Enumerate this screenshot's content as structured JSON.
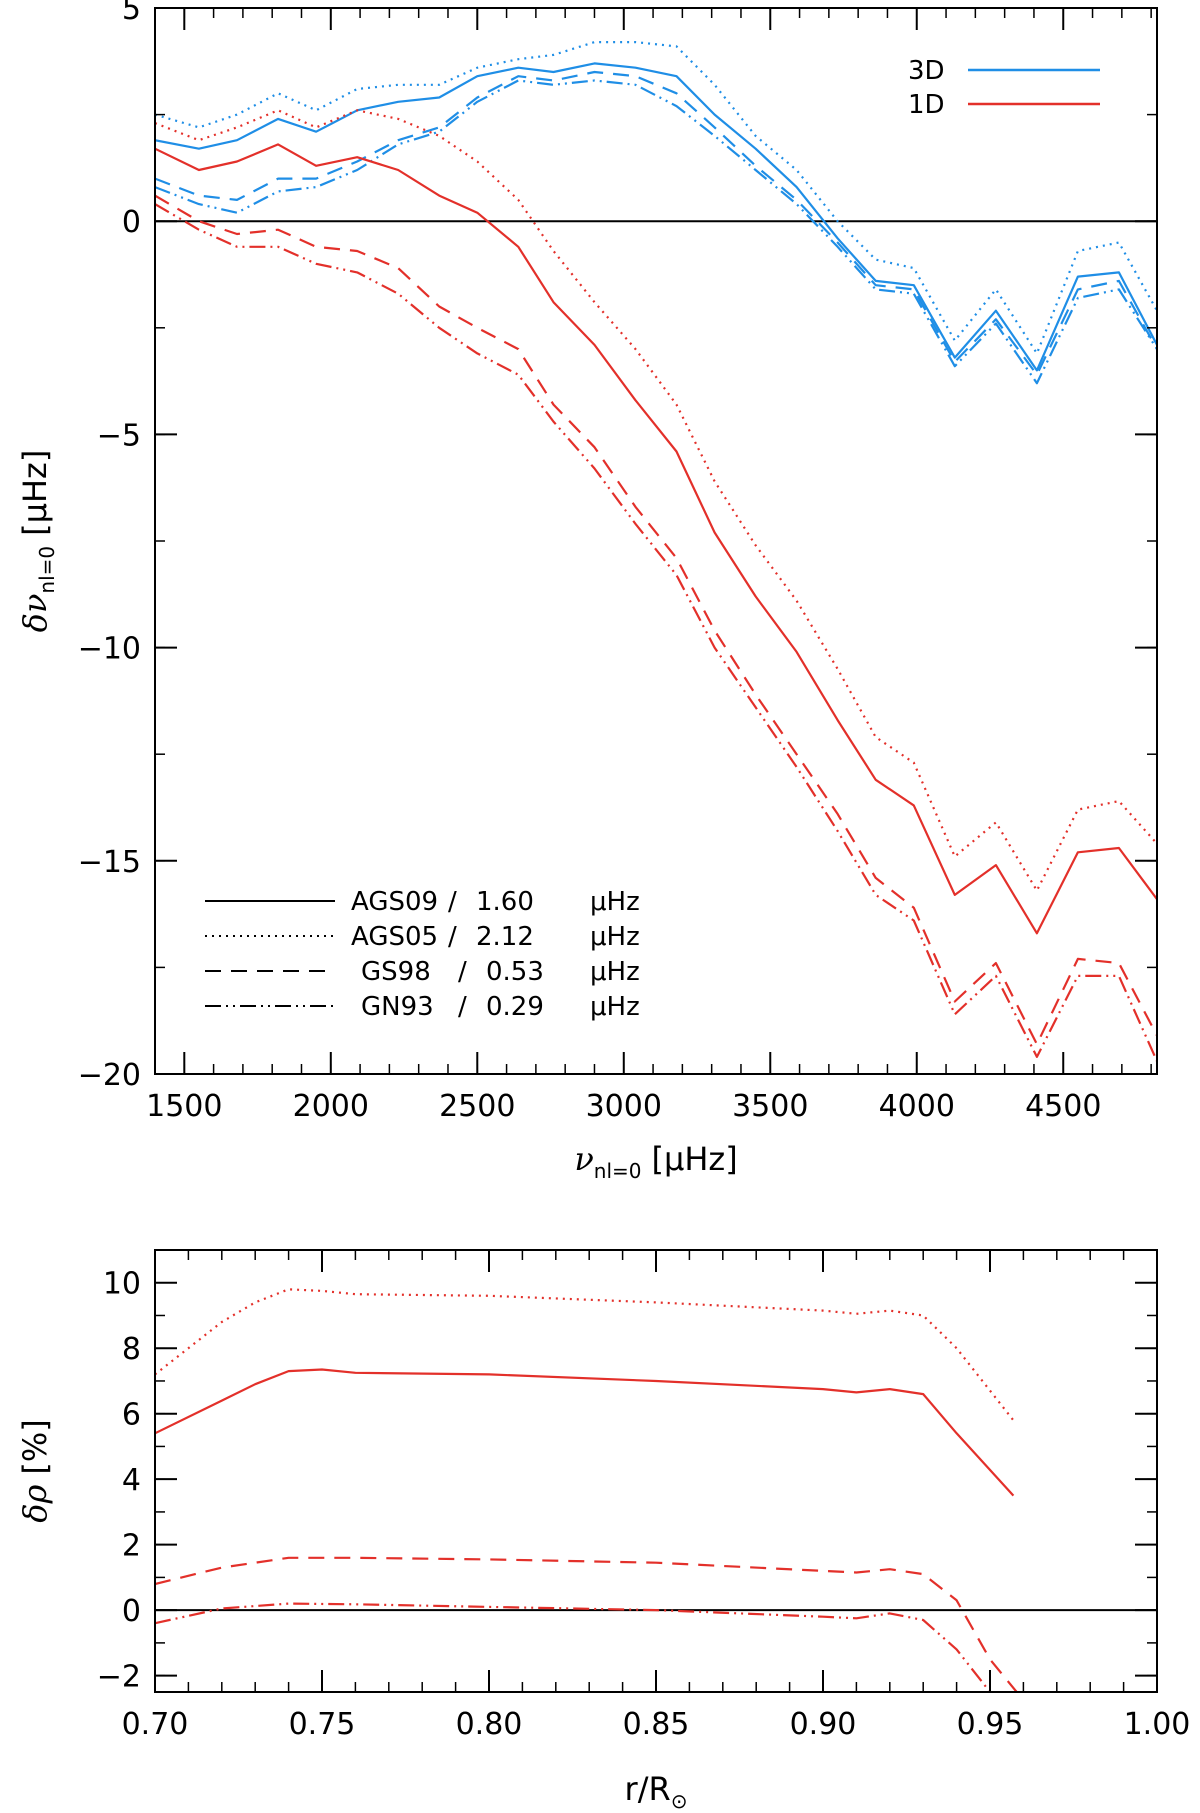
{
  "chart_data": [
    {
      "type": "line",
      "xlabel": "ν_nl=0 [μHz]",
      "ylabel": "δν_nl=0 [μHz]",
      "xlabel_sym": "ν",
      "xlabel_sub": "nl=0",
      "xlabel_unit": "[μHz]",
      "ylabel_sym": "δν",
      "ylabel_sub": "nl=0",
      "ylabel_unit": "[μHz]",
      "xlim": [
        1400,
        4820
      ],
      "ylim": [
        -20,
        5
      ],
      "xticks": [
        1500,
        2000,
        2500,
        3000,
        3500,
        4000,
        4500
      ],
      "xtick_labels": [
        "1500",
        "2000",
        "2500",
        "3000",
        "3500",
        "4000",
        "4500"
      ],
      "yticks": [
        5,
        0,
        -5,
        -10,
        -15,
        -20
      ],
      "ytick_labels": [
        "5",
        "0",
        "−5",
        "−10",
        "−15",
        "−20"
      ],
      "zero_line": true,
      "x": [
        1400,
        1550,
        1680,
        1820,
        1950,
        2090,
        2230,
        2370,
        2500,
        2640,
        2760,
        2900,
        3040,
        3180,
        3310,
        3450,
        3590,
        3730,
        3860,
        3990,
        4130,
        4270,
        4410,
        4550,
        4690,
        4820
      ],
      "color_legend": [
        {
          "label": "3D",
          "color": "#1f8ee6"
        },
        {
          "label": "1D",
          "color": "#e3302a"
        }
      ],
      "style_legend": [
        {
          "name": "AGS09",
          "value": "1.60",
          "unit": "μHz",
          "dash": "solid"
        },
        {
          "name": "AGS05",
          "value": "2.12",
          "unit": "μHz",
          "dash": "dotted"
        },
        {
          "name": "GS98",
          "value": "0.53",
          "unit": "μHz",
          "dash": "dashed"
        },
        {
          "name": "GN93",
          "value": "0.29",
          "unit": "μHz",
          "dash": "dashdotdot"
        }
      ],
      "series": [
        {
          "name": "3D AGS09",
          "group": "3D",
          "dash": "solid",
          "values": [
            1.9,
            1.7,
            1.9,
            2.4,
            2.1,
            2.6,
            2.8,
            2.9,
            3.4,
            3.6,
            3.5,
            3.7,
            3.6,
            3.4,
            2.5,
            1.7,
            0.8,
            -0.4,
            -1.4,
            -1.5,
            -3.2,
            -2.1,
            -3.5,
            -1.3,
            -1.2,
            -2.9
          ]
        },
        {
          "name": "3D AGS05",
          "group": "3D",
          "dash": "dotted",
          "values": [
            2.5,
            2.2,
            2.5,
            3.0,
            2.6,
            3.1,
            3.2,
            3.2,
            3.6,
            3.8,
            3.9,
            4.2,
            4.2,
            4.1,
            3.2,
            2.0,
            1.2,
            0.0,
            -0.9,
            -1.1,
            -2.8,
            -1.6,
            -3.1,
            -0.7,
            -0.5,
            -2.1
          ]
        },
        {
          "name": "3D GS98",
          "group": "3D",
          "dash": "dashed",
          "values": [
            1.0,
            0.6,
            0.5,
            1.0,
            1.0,
            1.4,
            1.9,
            2.2,
            2.9,
            3.4,
            3.3,
            3.5,
            3.4,
            3.0,
            2.2,
            1.3,
            0.5,
            -0.5,
            -1.5,
            -1.6,
            -3.3,
            -2.3,
            -3.6,
            -1.6,
            -1.4,
            -3.0
          ]
        },
        {
          "name": "3D GN93",
          "group": "3D",
          "dash": "dashdotdot",
          "values": [
            0.8,
            0.4,
            0.2,
            0.7,
            0.8,
            1.2,
            1.8,
            2.1,
            2.8,
            3.3,
            3.2,
            3.3,
            3.2,
            2.7,
            2.0,
            1.2,
            0.4,
            -0.6,
            -1.6,
            -1.7,
            -3.4,
            -2.4,
            -3.8,
            -1.8,
            -1.6,
            -3.0
          ]
        },
        {
          "name": "1D AGS09",
          "group": "1D",
          "dash": "solid",
          "values": [
            1.7,
            1.2,
            1.4,
            1.8,
            1.3,
            1.5,
            1.2,
            0.6,
            0.2,
            -0.6,
            -1.9,
            -2.9,
            -4.2,
            -5.4,
            -7.3,
            -8.8,
            -10.1,
            -11.7,
            -13.1,
            -13.7,
            -15.8,
            -15.1,
            -16.7,
            -14.8,
            -14.7,
            -15.9
          ]
        },
        {
          "name": "1D AGS05",
          "group": "1D",
          "dash": "dotted",
          "values": [
            2.3,
            1.9,
            2.2,
            2.6,
            2.2,
            2.6,
            2.4,
            2.0,
            1.4,
            0.5,
            -0.7,
            -1.9,
            -3.0,
            -4.3,
            -6.1,
            -7.6,
            -8.9,
            -10.5,
            -12.1,
            -12.7,
            -14.9,
            -14.1,
            -15.7,
            -13.8,
            -13.6,
            -14.6
          ]
        },
        {
          "name": "1D GS98",
          "group": "1D",
          "dash": "dashed",
          "values": [
            0.6,
            0.0,
            -0.3,
            -0.2,
            -0.6,
            -0.7,
            -1.1,
            -2.0,
            -2.5,
            -3.0,
            -4.3,
            -5.3,
            -6.7,
            -7.9,
            -9.6,
            -11.1,
            -12.5,
            -13.9,
            -15.4,
            -16.1,
            -18.3,
            -17.4,
            -19.3,
            -17.3,
            -17.4,
            -19.1
          ]
        },
        {
          "name": "1D GN93",
          "group": "1D",
          "dash": "dashdotdot",
          "values": [
            0.4,
            -0.2,
            -0.6,
            -0.6,
            -1.0,
            -1.2,
            -1.7,
            -2.5,
            -3.1,
            -3.6,
            -4.7,
            -5.8,
            -7.1,
            -8.3,
            -10.0,
            -11.4,
            -12.8,
            -14.3,
            -15.8,
            -16.4,
            -18.6,
            -17.7,
            -19.6,
            -17.7,
            -17.7,
            -19.7
          ]
        }
      ]
    },
    {
      "type": "line",
      "xlabel": "r/R⊙",
      "xlabel_text": "r/R",
      "xlabel_sub": "⊙",
      "ylabel": "δρ [%]",
      "ylabel_sym": "δρ",
      "ylabel_unit": "[%]",
      "xlim": [
        0.7,
        1.0
      ],
      "ylim": [
        -2.5,
        11.0
      ],
      "xticks": [
        0.7,
        0.75,
        0.8,
        0.85,
        0.9,
        0.95,
        1.0
      ],
      "xtick_labels": [
        "0.70",
        "0.75",
        "0.80",
        "0.85",
        "0.90",
        "0.95",
        "1.00"
      ],
      "yticks": [
        10,
        8,
        6,
        4,
        2,
        0,
        -2
      ],
      "ytick_labels": [
        "10",
        "8",
        "6",
        "4",
        "2",
        "0",
        "−2"
      ],
      "zero_line": true,
      "series": [
        {
          "name": "1D AGS09",
          "dash": "solid",
          "x": [
            0.7,
            0.72,
            0.73,
            0.74,
            0.75,
            0.76,
            0.8,
            0.85,
            0.9,
            0.91,
            0.92,
            0.93,
            0.94,
            0.957
          ],
          "values": [
            5.4,
            6.4,
            6.9,
            7.3,
            7.35,
            7.25,
            7.2,
            7.0,
            6.75,
            6.65,
            6.75,
            6.6,
            5.4,
            3.5
          ]
        },
        {
          "name": "1D AGS05",
          "dash": "dotted",
          "x": [
            0.7,
            0.72,
            0.73,
            0.74,
            0.75,
            0.76,
            0.8,
            0.85,
            0.9,
            0.91,
            0.92,
            0.93,
            0.94,
            0.957
          ],
          "values": [
            7.2,
            8.8,
            9.4,
            9.8,
            9.75,
            9.65,
            9.6,
            9.4,
            9.15,
            9.05,
            9.15,
            9.0,
            8.0,
            5.8
          ]
        },
        {
          "name": "1D GS98",
          "dash": "dashed",
          "x": [
            0.7,
            0.72,
            0.74,
            0.76,
            0.8,
            0.85,
            0.9,
            0.91,
            0.92,
            0.93,
            0.94,
            0.95,
            0.958
          ],
          "values": [
            0.8,
            1.3,
            1.6,
            1.6,
            1.55,
            1.45,
            1.2,
            1.15,
            1.25,
            1.1,
            0.3,
            -1.5,
            -2.5
          ]
        },
        {
          "name": "1D GN93",
          "dash": "dashdotdot",
          "x": [
            0.7,
            0.72,
            0.74,
            0.76,
            0.8,
            0.85,
            0.9,
            0.91,
            0.92,
            0.93,
            0.94,
            0.95
          ],
          "values": [
            -0.4,
            0.05,
            0.2,
            0.18,
            0.1,
            0.0,
            -0.2,
            -0.25,
            -0.1,
            -0.3,
            -1.2,
            -2.5
          ]
        }
      ]
    }
  ]
}
